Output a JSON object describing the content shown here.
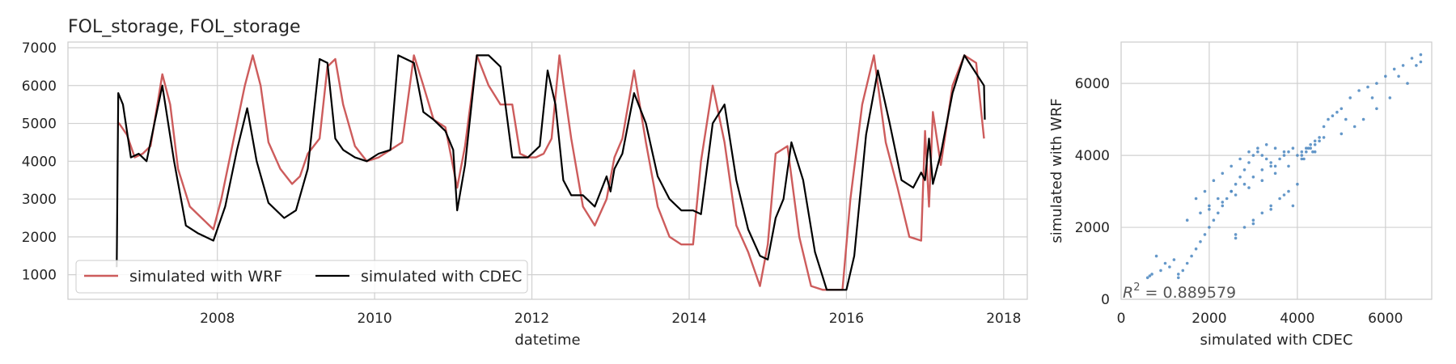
{
  "chart_data": [
    {
      "type": "line",
      "title": "FOL_storage, FOL_storage",
      "xlabel": "datetime",
      "ylabel": "",
      "xlim": [
        2006.1,
        2018.3
      ],
      "ylim": [
        350,
        7150
      ],
      "xticks": [
        2008,
        2010,
        2012,
        2014,
        2016,
        2018
      ],
      "xtick_labels": [
        "2008",
        "2010",
        "2012",
        "2014",
        "2016",
        "2018"
      ],
      "yticks": [
        1000,
        2000,
        3000,
        4000,
        5000,
        6000,
        7000
      ],
      "ytick_labels": [
        "1000",
        "2000",
        "3000",
        "4000",
        "5000",
        "6000",
        "7000"
      ],
      "grid": true,
      "legend_position": "lower-left",
      "series": [
        {
          "name": "simulated with WRF",
          "color": "#cd5c5c",
          "x": [
            2006.74,
            2006.75,
            2006.85,
            2006.95,
            2007.05,
            2007.15,
            2007.3,
            2007.4,
            2007.5,
            2007.65,
            2007.8,
            2007.95,
            2008.05,
            2008.2,
            2008.35,
            2008.45,
            2008.55,
            2008.65,
            2008.8,
            2008.95,
            2009.05,
            2009.15,
            2009.3,
            2009.4,
            2009.5,
            2009.6,
            2009.75,
            2009.9,
            2010.05,
            2010.2,
            2010.35,
            2010.5,
            2010.62,
            2010.75,
            2010.9,
            2011.05,
            2011.15,
            2011.3,
            2011.45,
            2011.6,
            2011.75,
            2011.85,
            2011.95,
            2012.05,
            2012.15,
            2012.25,
            2012.35,
            2012.5,
            2012.65,
            2012.8,
            2012.95,
            2013.05,
            2013.15,
            2013.3,
            2013.45,
            2013.6,
            2013.75,
            2013.9,
            2014.05,
            2014.15,
            2014.3,
            2014.45,
            2014.6,
            2014.75,
            2014.9,
            2015.0,
            2015.1,
            2015.25,
            2015.4,
            2015.55,
            2015.7,
            2015.8,
            2015.95,
            2016.05,
            2016.2,
            2016.35,
            2016.5,
            2016.65,
            2016.8,
            2016.95,
            2017.0,
            2017.05,
            2017.1,
            2017.2,
            2017.35,
            2017.5,
            2017.65,
            2017.75
          ],
          "y": [
            5000,
            5000,
            4700,
            4100,
            4200,
            4400,
            6300,
            5500,
            3800,
            2800,
            2500,
            2200,
            3000,
            4500,
            6000,
            6800,
            6000,
            4500,
            3800,
            3400,
            3600,
            4200,
            4600,
            6500,
            6700,
            5500,
            4400,
            4000,
            4100,
            4300,
            4500,
            6800,
            6000,
            5100,
            4900,
            3300,
            4400,
            6800,
            6000,
            5500,
            5500,
            4200,
            4100,
            4100,
            4200,
            4600,
            6800,
            4600,
            2800,
            2300,
            3000,
            4100,
            4600,
            6400,
            4500,
            2800,
            2000,
            1800,
            1800,
            4000,
            6000,
            4500,
            2300,
            1600,
            700,
            1800,
            4200,
            4400,
            2000,
            700,
            600,
            600,
            600,
            3000,
            5500,
            6800,
            4500,
            3300,
            2000,
            1900,
            4800,
            2800,
            5300,
            3900,
            6000,
            6800,
            6600,
            4600
          ]
        },
        {
          "name": "simulated with CDEC",
          "color": "#000000",
          "x": [
            2006.72,
            2006.74,
            2006.8,
            2006.9,
            2007.0,
            2007.1,
            2007.2,
            2007.3,
            2007.45,
            2007.6,
            2007.75,
            2007.95,
            2008.1,
            2008.25,
            2008.38,
            2008.5,
            2008.65,
            2008.85,
            2009.0,
            2009.15,
            2009.3,
            2009.4,
            2009.5,
            2009.6,
            2009.75,
            2009.9,
            2010.05,
            2010.2,
            2010.3,
            2010.5,
            2010.62,
            2010.75,
            2010.9,
            2011.0,
            2011.05,
            2011.15,
            2011.3,
            2011.45,
            2011.6,
            2011.75,
            2011.85,
            2011.95,
            2012.1,
            2012.2,
            2012.3,
            2012.4,
            2012.5,
            2012.65,
            2012.8,
            2012.95,
            2013.0,
            2013.05,
            2013.15,
            2013.3,
            2013.45,
            2013.6,
            2013.75,
            2013.9,
            2014.05,
            2014.15,
            2014.3,
            2014.45,
            2014.6,
            2014.75,
            2014.9,
            2015.0,
            2015.1,
            2015.2,
            2015.3,
            2015.45,
            2015.6,
            2015.75,
            2015.9,
            2016.0,
            2016.1,
            2016.25,
            2016.4,
            2016.55,
            2016.7,
            2016.85,
            2016.95,
            2017.0,
            2017.05,
            2017.1,
            2017.2,
            2017.35,
            2017.5,
            2017.75,
            2017.76
          ],
          "y": [
            1200,
            5800,
            5500,
            4100,
            4200,
            4000,
            5000,
            6000,
            4000,
            2300,
            2100,
            1900,
            2800,
            4300,
            5400,
            4000,
            2900,
            2500,
            2700,
            3800,
            6700,
            6600,
            4600,
            4300,
            4100,
            4000,
            4200,
            4300,
            6800,
            6600,
            5300,
            5100,
            4800,
            4300,
            2700,
            3900,
            6800,
            6800,
            6500,
            4100,
            4100,
            4100,
            4400,
            6400,
            5500,
            3500,
            3100,
            3100,
            2800,
            3600,
            3200,
            3800,
            4200,
            5800,
            5000,
            3600,
            3000,
            2700,
            2700,
            2600,
            5000,
            5500,
            3500,
            2200,
            1500,
            1400,
            2500,
            3000,
            4500,
            3500,
            1600,
            600,
            600,
            600,
            1500,
            4700,
            6400,
            5000,
            3500,
            3300,
            3700,
            3500,
            4600,
            3400,
            4200,
            5800,
            6800,
            6000,
            5100
          ]
        }
      ]
    },
    {
      "type": "scatter",
      "title": "",
      "xlabel": "simulated with CDEC",
      "ylabel": "simulated with WRF",
      "xlim": [
        0,
        7050
      ],
      "ylim": [
        0,
        7150
      ],
      "xticks": [
        0,
        2000,
        4000,
        6000
      ],
      "xtick_labels": [
        "0",
        "2000",
        "4000",
        "6000"
      ],
      "yticks": [
        0,
        2000,
        4000,
        6000
      ],
      "ytick_labels": [
        "0",
        "2000",
        "4000",
        "6000"
      ],
      "grid": true,
      "color": "#4a86c0",
      "annotation": "R^2 = 0.889579",
      "r2_label": "R",
      "r2_sup": "2",
      "r2_value": " = 0.889579",
      "x": [
        600,
        650,
        700,
        800,
        900,
        1000,
        1100,
        1200,
        1300,
        1400,
        1500,
        1600,
        1700,
        1800,
        1900,
        2000,
        2100,
        2200,
        2300,
        2400,
        2500,
        2600,
        2700,
        2800,
        2900,
        3000,
        3100,
        3200,
        3300,
        3400,
        3500,
        3600,
        3700,
        3800,
        3900,
        4000,
        4100,
        4200,
        4300,
        4400,
        4500,
        4600,
        4700,
        4800,
        4900,
        5000,
        5200,
        5400,
        5600,
        5800,
        6000,
        6200,
        6400,
        6600,
        6800,
        1700,
        1900,
        2100,
        2300,
        2500,
        2700,
        2900,
        3100,
        3300,
        3500,
        3700,
        1500,
        1800,
        2000,
        2200,
        2500,
        2800,
        3000,
        3200,
        3400,
        4200,
        4300,
        4400,
        4500,
        4600,
        5000,
        5300,
        5500,
        5800,
        6100,
        6500,
        6800,
        2000,
        2300,
        2600,
        2900,
        3200,
        3500,
        3800,
        4100,
        4400,
        2600,
        2800,
        3000,
        3200,
        3400,
        3600,
        3800,
        4000,
        1300,
        3900,
        4100,
        4150,
        4250,
        4350,
        5100,
        5700,
        6300,
        6700,
        2600,
        3000,
        3400,
        3700
      ],
      "y": [
        600,
        650,
        700,
        1200,
        800,
        1000,
        900,
        1100,
        600,
        800,
        1000,
        1200,
        1400,
        1600,
        1800,
        2000,
        2200,
        2400,
        2600,
        2800,
        3000,
        3200,
        3400,
        3600,
        3800,
        4000,
        4100,
        4000,
        3900,
        3800,
        3700,
        3900,
        4000,
        4100,
        4200,
        4000,
        4100,
        4200,
        4300,
        4400,
        4500,
        4800,
        5000,
        5100,
        5200,
        5300,
        5600,
        5800,
        5900,
        6000,
        6200,
        6400,
        6500,
        6700,
        6800,
        2800,
        3000,
        3300,
        3500,
        3700,
        3900,
        4100,
        4200,
        4300,
        4200,
        4100,
        2200,
        2400,
        2600,
        2800,
        3000,
        3200,
        3400,
        3600,
        3700,
        4100,
        4200,
        4300,
        4400,
        4500,
        4600,
        4800,
        5000,
        5300,
        5600,
        6000,
        6600,
        2500,
        2700,
        2900,
        3100,
        3300,
        3500,
        3700,
        3900,
        4100,
        1800,
        2000,
        2200,
        2400,
        2600,
        2800,
        3000,
        3200,
        700,
        2600,
        4000,
        3900,
        4200,
        4100,
        5000,
        5600,
        6200,
        6500,
        1700,
        2100,
        2500,
        2900
      ]
    }
  ]
}
